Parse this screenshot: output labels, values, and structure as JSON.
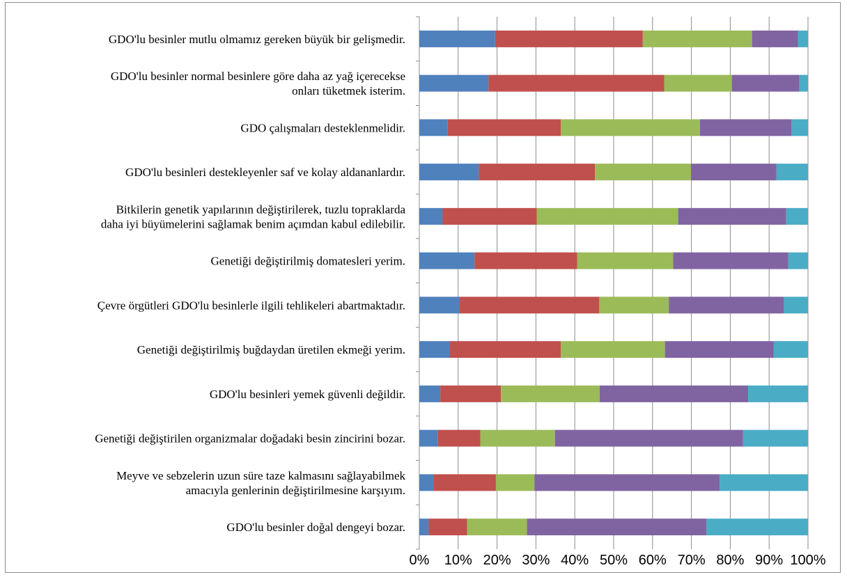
{
  "chart_data": {
    "type": "bar",
    "orientation": "horizontal",
    "stacked": "percent",
    "title": "",
    "xlabel": "",
    "ylabel": "",
    "xlim": [
      0,
      100
    ],
    "x_ticks": [
      "0%",
      "10%",
      "20%",
      "30%",
      "40%",
      "50%",
      "60%",
      "70%",
      "80%",
      "90%",
      "100%"
    ],
    "grid": "vertical",
    "legend": "none",
    "categories": [
      [
        "GDO'lu besinler mutlu olmamız gereken büyük bir gelişmedir."
      ],
      [
        "GDO'lu besinler normal besinlere göre daha az yağ içerecekse",
        "onları tüketmek isterim."
      ],
      [
        "GDO çalışmaları desteklenmelidir."
      ],
      [
        "GDO'lu besinleri destekleyenler saf ve kolay aldananlardır."
      ],
      [
        "Bitkilerin genetik yapılarının değiştirilerek, tuzlu topraklarda",
        "daha iyi büyümelerini sağlamak benim açımdan kabul edilebilir."
      ],
      [
        "Genetiği değiştirilmiş domatesleri yerim."
      ],
      [
        "Çevre örgütleri GDO'lu besinlerle ilgili tehlikeleri abartmaktadır."
      ],
      [
        "Genetiği değiştirilmiş buğdaydan üretilen ekmeği yerim."
      ],
      [
        "GDO'lu besinleri yemek güvenli değildir."
      ],
      [
        "Genetiği değiştirilen organizmalar doğadaki besin zincirini bozar."
      ],
      [
        "Meyve ve sebzelerin uzun süre taze kalmasını sağlayabilmek",
        "amacıyla genlerinin değiştirilmesine karşıyım."
      ],
      [
        "GDO'lu besinler doğal dengeyi bozar."
      ]
    ],
    "series": [
      {
        "color": "#4f81bd",
        "values": [
          19.5,
          17.8,
          7.3,
          15.3,
          6.0,
          14.2,
          10.4,
          7.8,
          5.4,
          4.8,
          3.6,
          2.4
        ]
      },
      {
        "color": "#c0504d",
        "values": [
          38.0,
          45.2,
          29.1,
          29.9,
          24.2,
          26.4,
          35.9,
          28.6,
          15.6,
          10.9,
          16.1,
          9.9
        ]
      },
      {
        "color": "#9bbb59",
        "values": [
          28.1,
          17.4,
          35.8,
          24.7,
          36.4,
          24.7,
          17.9,
          26.8,
          25.4,
          19.2,
          9.9,
          15.4
        ]
      },
      {
        "color": "#8064a2",
        "values": [
          11.8,
          17.4,
          23.5,
          22.0,
          27.8,
          29.6,
          29.6,
          28.0,
          38.2,
          48.4,
          47.7,
          46.2
        ]
      },
      {
        "color": "#4bacc6",
        "values": [
          2.6,
          2.2,
          4.3,
          8.1,
          5.6,
          5.1,
          6.2,
          8.8,
          15.4,
          16.7,
          22.7,
          26.1
        ]
      }
    ]
  }
}
